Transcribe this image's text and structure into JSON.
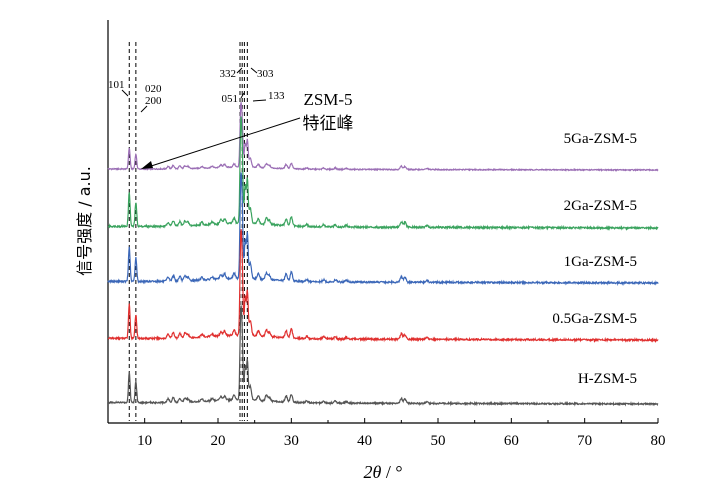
{
  "chart_data": {
    "type": "line",
    "xlabel": "2θ / °",
    "xlabel_parts": {
      "var": "2θ",
      "sep": " / ",
      "unit": "°"
    },
    "ylabel": "信号强度 / a.u.",
    "xlim": [
      5,
      80
    ],
    "xticks": [
      10,
      20,
      30,
      40,
      50,
      60,
      70,
      80
    ],
    "yticks": "none",
    "grid": false,
    "legend": "labels placed above each curve (right side)",
    "reference_lines_2theta": [
      7.9,
      8.8,
      23.0,
      23.3,
      23.6,
      24.0
    ],
    "hkl_labels": [
      {
        "text": "101",
        "line_2theta": 7.9
      },
      {
        "text": "020",
        "line_2theta": 8.8
      },
      {
        "text": "200",
        "line_2theta": 8.8
      },
      {
        "text": "332",
        "line_2theta": 23.0
      },
      {
        "text": "303",
        "line_2theta": 23.6
      },
      {
        "text": "051",
        "line_2theta": 23.3
      },
      {
        "text": "133",
        "line_2theta": 24.0
      }
    ],
    "annotation": {
      "line1": "ZSM-5",
      "line2": "特征峰",
      "points_to_2theta": 8.8
    },
    "peaks": [
      {
        "x": 7.9,
        "h": 1.0
      },
      {
        "x": 8.8,
        "h": 0.7
      },
      {
        "x": 13.2,
        "h": 0.12
      },
      {
        "x": 13.9,
        "h": 0.16
      },
      {
        "x": 14.8,
        "h": 0.13
      },
      {
        "x": 15.5,
        "h": 0.14
      },
      {
        "x": 15.9,
        "h": 0.1
      },
      {
        "x": 17.8,
        "h": 0.08
      },
      {
        "x": 19.2,
        "h": 0.07
      },
      {
        "x": 20.4,
        "h": 0.12
      },
      {
        "x": 20.9,
        "h": 0.14
      },
      {
        "x": 22.2,
        "h": 0.15
      },
      {
        "x": 23.1,
        "h": 2.6
      },
      {
        "x": 23.3,
        "h": 1.8
      },
      {
        "x": 23.7,
        "h": 1.1
      },
      {
        "x": 24.0,
        "h": 1.3
      },
      {
        "x": 24.4,
        "h": 0.45
      },
      {
        "x": 25.5,
        "h": 0.15
      },
      {
        "x": 26.6,
        "h": 0.18
      },
      {
        "x": 27.0,
        "h": 0.12
      },
      {
        "x": 29.3,
        "h": 0.2
      },
      {
        "x": 30.0,
        "h": 0.26
      },
      {
        "x": 32.1,
        "h": 0.06
      },
      {
        "x": 34.4,
        "h": 0.06
      },
      {
        "x": 36.0,
        "h": 0.07
      },
      {
        "x": 37.5,
        "h": 0.05
      },
      {
        "x": 45.0,
        "h": 0.16
      },
      {
        "x": 45.5,
        "h": 0.14
      },
      {
        "x": 48.5,
        "h": 0.05
      }
    ],
    "series": [
      {
        "name": "5Ga-ZSM-5",
        "color": "#9b6fb5",
        "offset": 4,
        "scale": 0.55
      },
      {
        "name": "2Ga-ZSM-5",
        "color": "#3aa35e",
        "offset": 3,
        "scale": 0.9
      },
      {
        "name": "1Ga-ZSM-5",
        "color": "#3b67b8",
        "offset": 2,
        "scale": 0.9
      },
      {
        "name": "0.5Ga-ZSM-5",
        "color": "#e0302f",
        "offset": 1,
        "scale": 0.9
      },
      {
        "name": "H-ZSM-5",
        "color": "#555555",
        "offset": 0,
        "scale": 0.8
      }
    ]
  }
}
